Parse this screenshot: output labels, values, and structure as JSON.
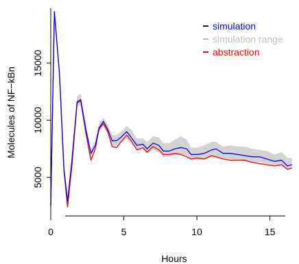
{
  "chart_data": {
    "type": "line",
    "title": "",
    "xlabel": "Hours",
    "ylabel": "Molecules of NF−kBn",
    "xlim": [
      0,
      16.8
    ],
    "ylim": [
      1800,
      19800
    ],
    "x_ticks": [
      0,
      5,
      10,
      15
    ],
    "x_tick_labels": [
      "0",
      "5",
      "10",
      "15"
    ],
    "y_ticks": [
      5000,
      10000,
      15000
    ],
    "y_tick_labels": [
      "5000",
      "10000",
      "15000"
    ],
    "grid": false,
    "legend_position": "top-right",
    "legend": [
      {
        "label": "simulation",
        "color": "#0000ff"
      },
      {
        "label": "simulation range",
        "color": "#bebebe"
      },
      {
        "label": "abstraction",
        "color": "#ff0000"
      }
    ],
    "series": [
      {
        "name": "simulation",
        "color": "#0000ff",
        "x": [
          0,
          0.25,
          0.6,
          0.9,
          1.15,
          1.45,
          1.8,
          2.05,
          2.4,
          2.75,
          3.05,
          3.3,
          3.6,
          3.9,
          4.2,
          4.5,
          4.8,
          5.2,
          5.5,
          5.9,
          6.3,
          6.6,
          7.0,
          7.4,
          7.7,
          8.1,
          8.5,
          8.9,
          9.3,
          9.6,
          10.0,
          10.5,
          11.0,
          11.3,
          11.8,
          12.3,
          12.8,
          13.3,
          13.8,
          14.3,
          14.8,
          15.3,
          15.8,
          16.2,
          16.5
        ],
        "y": [
          2500,
          19500,
          14000,
          5800,
          2900,
          6500,
          11600,
          11800,
          9200,
          7100,
          7800,
          9300,
          9900,
          9200,
          8200,
          8200,
          8500,
          9000,
          8500,
          7800,
          7900,
          7500,
          8000,
          7800,
          7300,
          7300,
          7500,
          7600,
          7500,
          7000,
          7000,
          7100,
          7400,
          7500,
          7100,
          7100,
          7000,
          6900,
          6800,
          6800,
          6600,
          6400,
          6500,
          6000,
          6100
        ]
      },
      {
        "name": "abstraction",
        "color": "#ff0000",
        "x": [
          0,
          0.25,
          0.6,
          0.9,
          1.15,
          1.45,
          1.8,
          2.05,
          2.4,
          2.75,
          3.05,
          3.3,
          3.6,
          3.9,
          4.2,
          4.5,
          4.8,
          5.2,
          5.5,
          5.9,
          6.3,
          6.6,
          7.0,
          7.4,
          7.7,
          8.1,
          8.5,
          8.9,
          9.3,
          9.6,
          10.0,
          10.5,
          11.0,
          11.3,
          11.8,
          12.3,
          12.8,
          13.3,
          13.8,
          14.3,
          14.8,
          15.3,
          15.8,
          16.2,
          16.5
        ],
        "y": [
          2500,
          19500,
          14000,
          5600,
          2400,
          6000,
          11500,
          11700,
          8900,
          6500,
          7500,
          9200,
          9700,
          9000,
          7700,
          7600,
          8100,
          8700,
          8200,
          7400,
          7600,
          7200,
          7700,
          7400,
          7000,
          7000,
          7100,
          7000,
          6800,
          6600,
          6700,
          6600,
          6900,
          6800,
          6600,
          6500,
          6500,
          6500,
          6300,
          6200,
          6100,
          6000,
          6100,
          5700,
          5800
        ]
      }
    ],
    "range_band": {
      "name": "simulation range",
      "color": "#d3d3d3",
      "x": [
        0,
        0.25,
        0.6,
        0.9,
        1.15,
        1.45,
        1.8,
        2.05,
        2.4,
        2.75,
        3.05,
        3.3,
        3.6,
        3.9,
        4.2,
        4.5,
        4.8,
        5.2,
        5.5,
        5.9,
        6.3,
        6.6,
        7.0,
        7.4,
        7.7,
        8.1,
        8.5,
        8.9,
        9.3,
        9.6,
        10.0,
        10.5,
        11.0,
        11.3,
        11.8,
        12.3,
        12.8,
        13.3,
        13.8,
        14.3,
        14.8,
        15.3,
        15.8,
        16.2,
        16.5
      ],
      "lower": [
        2500,
        19300,
        13700,
        5500,
        2700,
        6200,
        11200,
        11300,
        8700,
        6800,
        7500,
        8900,
        9500,
        8800,
        7800,
        7800,
        8000,
        8400,
        8000,
        7400,
        7400,
        7100,
        7400,
        7200,
        6800,
        6800,
        6900,
        7000,
        6900,
        6500,
        6500,
        6600,
        6800,
        6800,
        6600,
        6600,
        6500,
        6400,
        6300,
        6300,
        6200,
        6000,
        6100,
        5700,
        5800
      ],
      "upper": [
        2600,
        19700,
        14400,
        6200,
        3200,
        7000,
        12100,
        12300,
        9700,
        7500,
        8200,
        9700,
        10200,
        9600,
        8700,
        8700,
        9000,
        9500,
        9200,
        8400,
        8400,
        8100,
        8600,
        8500,
        8000,
        8000,
        8300,
        8600,
        8300,
        7600,
        7600,
        7800,
        8100,
        8100,
        7700,
        7800,
        7700,
        7700,
        7500,
        7400,
        7300,
        7000,
        7200,
        6700,
        6700
      ]
    }
  }
}
